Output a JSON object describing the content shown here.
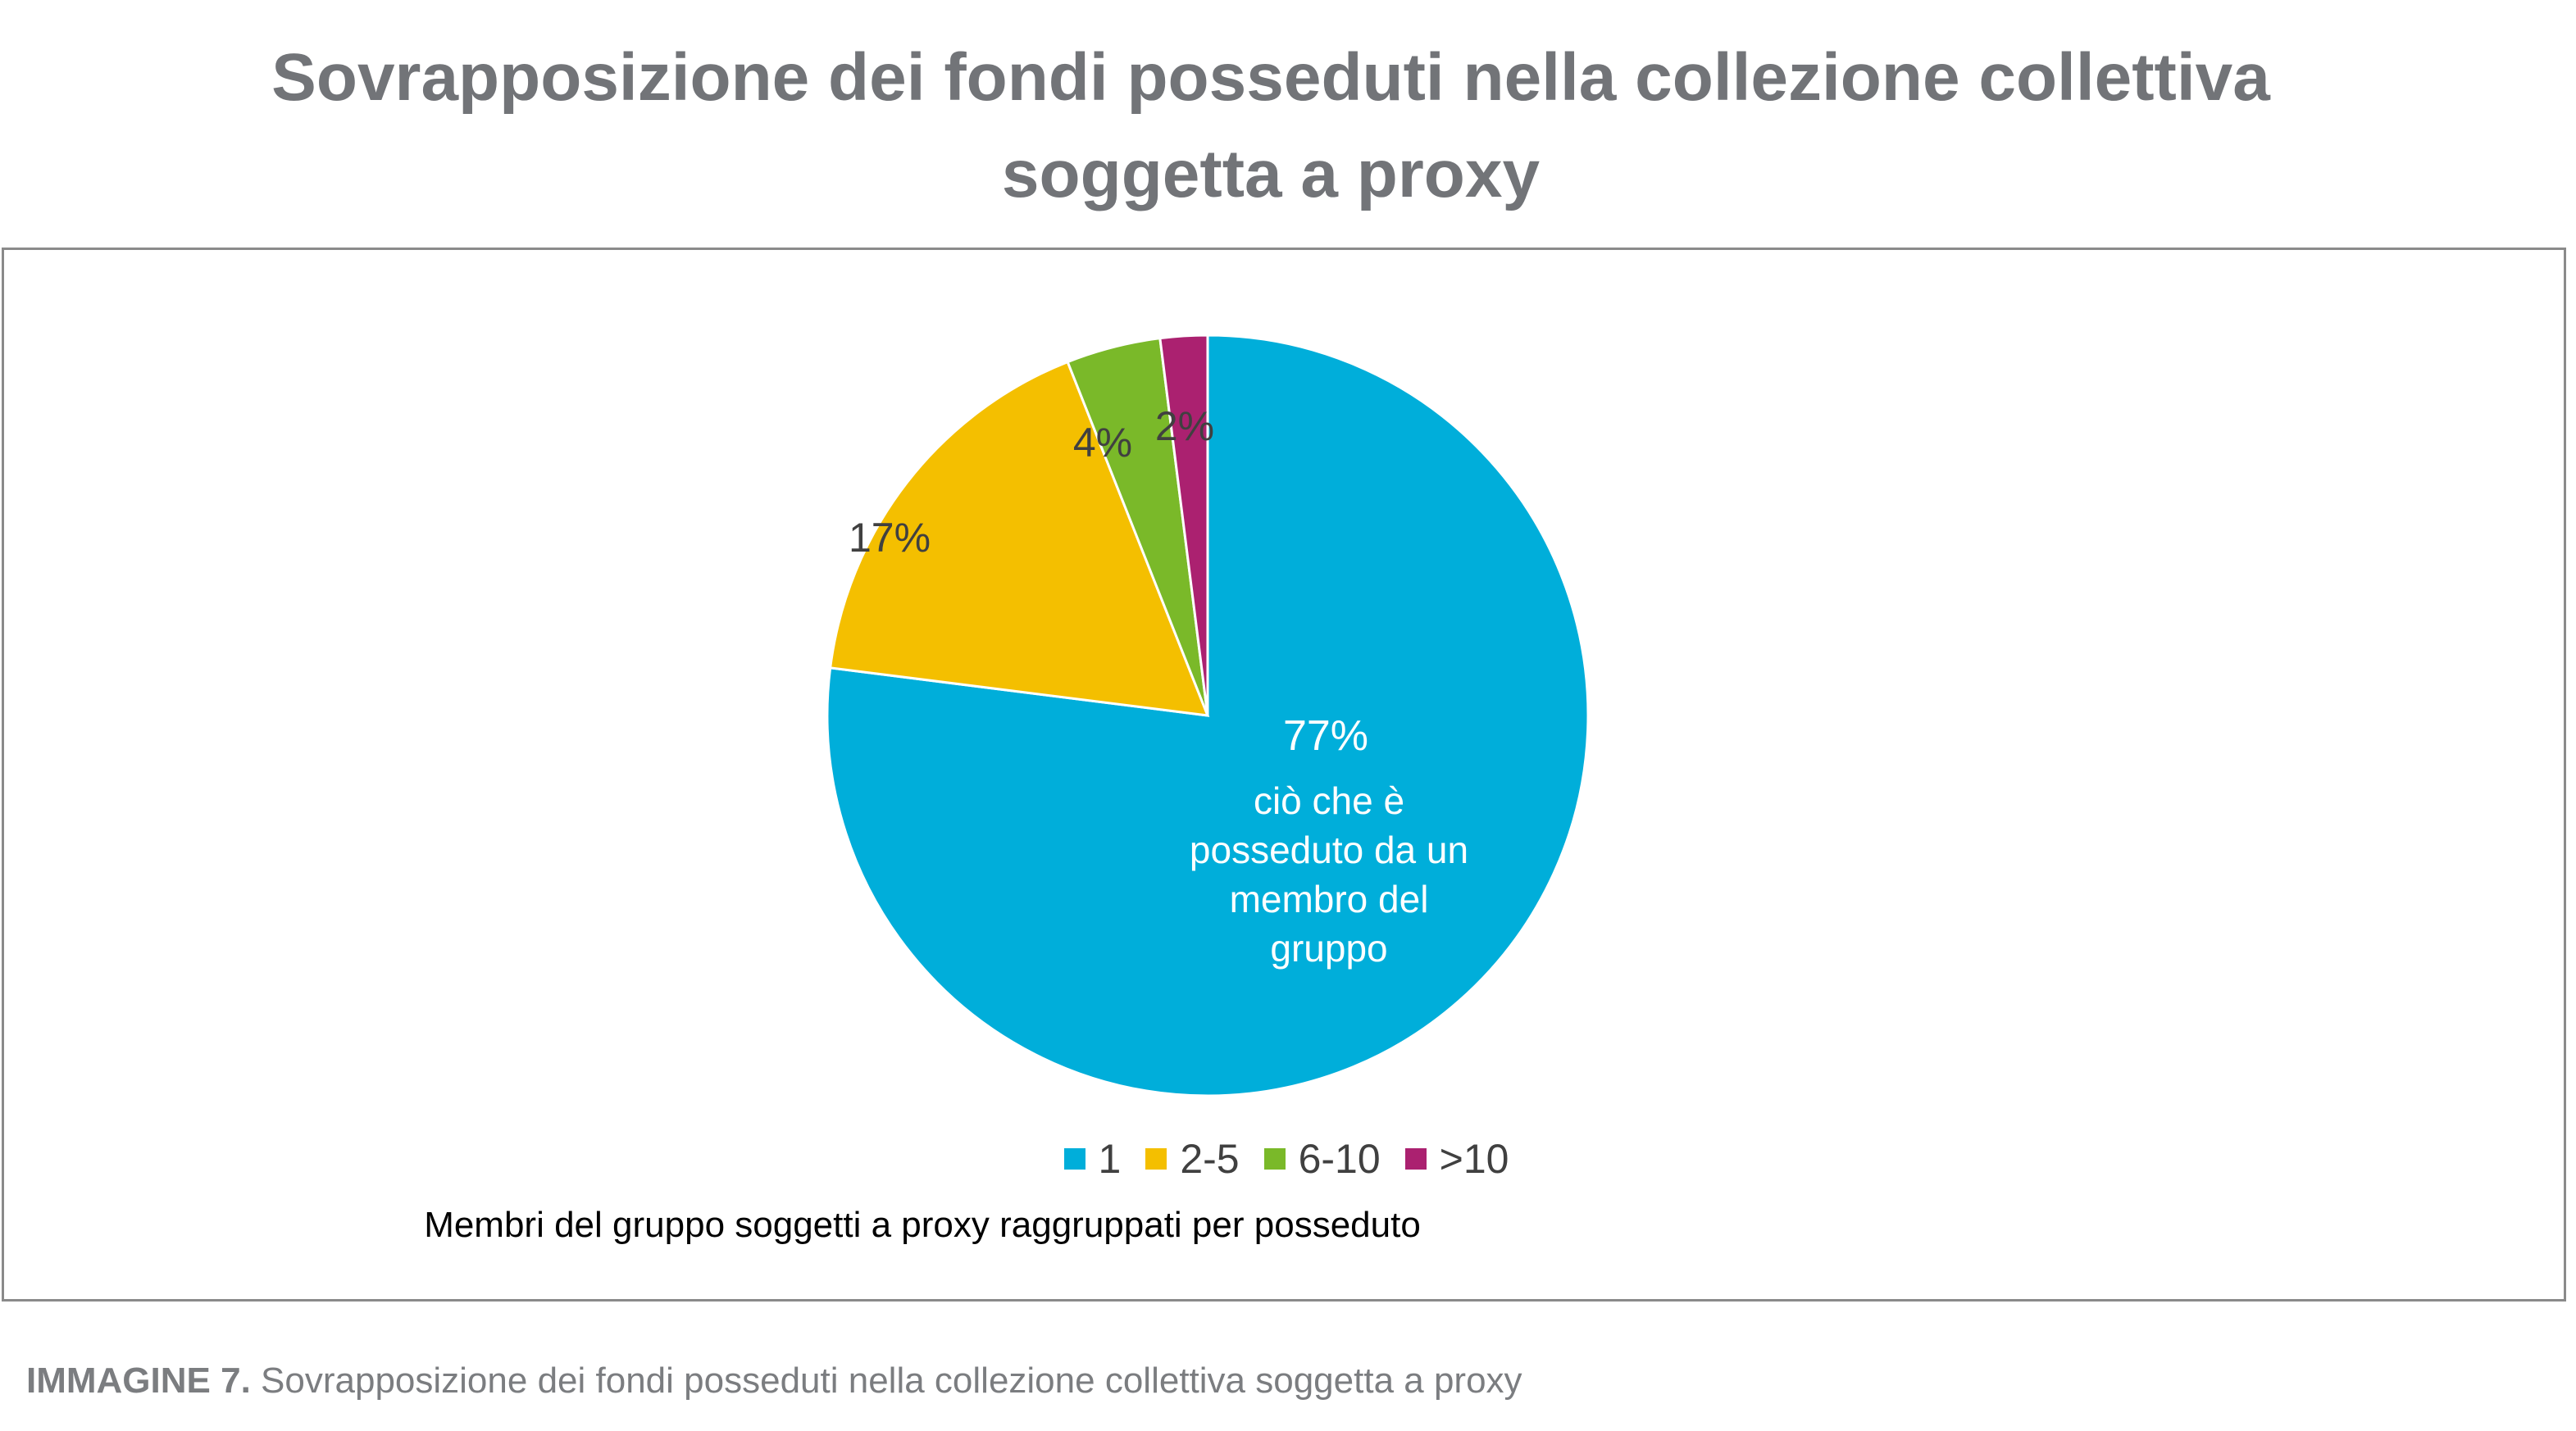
{
  "title_lines": [
    "Sovrapposizione dei fondi posseduti nella collezione collettiva",
    "soggetta a proxy"
  ],
  "caption": {
    "prefix": "IMMAGINE 7.",
    "text": "Sovrapposizione dei fondi posseduti nella collezione collettiva soggetta a proxy"
  },
  "chart_data": {
    "type": "pie",
    "title": "Sovrapposizione dei fondi posseduti nella collezione collettiva soggetta a proxy",
    "xlabel": "Membri del gruppo soggetti a proxy raggruppati per posseduto",
    "categories": [
      "1",
      "2-5",
      "6-10",
      ">10"
    ],
    "values": [
      77,
      17,
      4,
      2
    ],
    "value_labels": [
      "77%",
      "17%",
      "4%",
      "2%"
    ],
    "colors": [
      "#00AEDA",
      "#F4BF00",
      "#7AB929",
      "#AB2170"
    ],
    "inner_annotation": [
      "ciò che è",
      "posseduto da un",
      "membro del",
      "gruppo"
    ],
    "legend_position": "bottom"
  }
}
